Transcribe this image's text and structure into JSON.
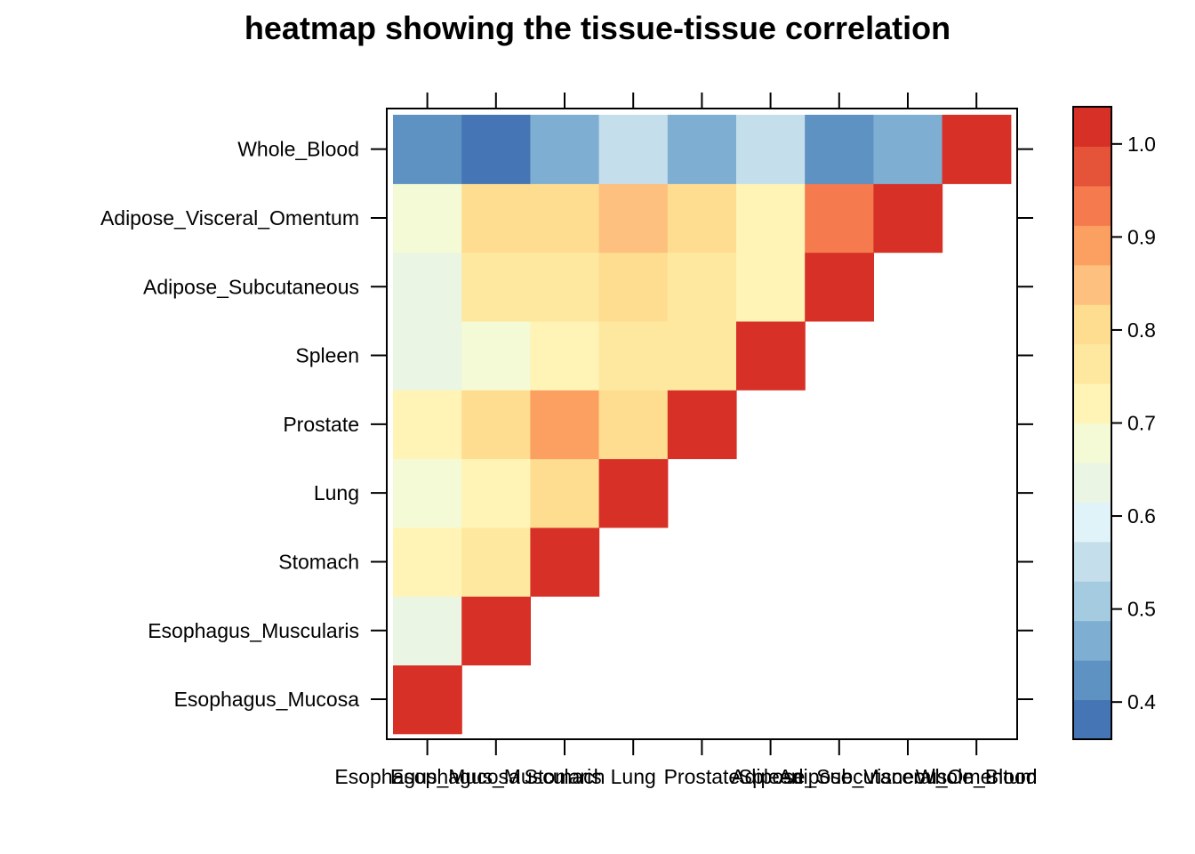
{
  "chart_data": {
    "type": "heatmap",
    "title": "heatmap showing the tissue-tissue correlation",
    "xlabel": "",
    "ylabel": "",
    "categories": [
      "Esophagus_Mucosa",
      "Esophagus_Muscularis",
      "Stomach",
      "Lung",
      "Prostate",
      "Spleen",
      "Adipose_Subcutaneous",
      "Adipose_Visceral_Omentum",
      "Whole_Blood"
    ],
    "matrix": [
      [
        1.0,
        0.65,
        0.72,
        0.68,
        0.72,
        0.65,
        0.65,
        0.69,
        0.42
      ],
      [
        null,
        1.0,
        0.76,
        0.72,
        0.79,
        0.68,
        0.76,
        0.79,
        0.38
      ],
      [
        null,
        null,
        1.0,
        0.79,
        0.88,
        0.73,
        0.76,
        0.79,
        0.48
      ],
      [
        null,
        null,
        null,
        1.0,
        0.79,
        0.76,
        0.79,
        0.84,
        0.57
      ],
      [
        null,
        null,
        null,
        null,
        1.0,
        0.76,
        0.76,
        0.79,
        0.48
      ],
      [
        null,
        null,
        null,
        null,
        null,
        1.0,
        0.73,
        0.73,
        0.57
      ],
      [
        null,
        null,
        null,
        null,
        null,
        null,
        1.0,
        0.95,
        0.42
      ],
      [
        null,
        null,
        null,
        null,
        null,
        null,
        null,
        1.0,
        0.48
      ],
      [
        null,
        null,
        null,
        null,
        null,
        null,
        null,
        null,
        1.0
      ]
    ],
    "colorbar": {
      "min": 0.36,
      "max": 1.04,
      "ticks": [
        "0.4",
        "0.5",
        "0.6",
        "0.7",
        "0.8",
        "0.9",
        "1.0"
      ],
      "colors": [
        "#4575b4",
        "#5e92c2",
        "#7eaed1",
        "#a4cbe0",
        "#c4dfeb",
        "#e0f3f8",
        "#eaf5e3",
        "#f4fad5",
        "#fff4b5",
        "#fee8a0",
        "#fedd90",
        "#fdc07e",
        "#fca062",
        "#f57a4e",
        "#e55339",
        "#d73027"
      ]
    },
    "grid": false,
    "legend": "right"
  }
}
